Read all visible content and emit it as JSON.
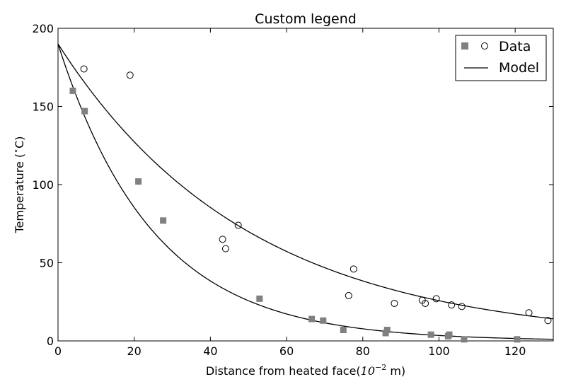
{
  "chart_data": {
    "type": "scatter",
    "title": "Custom legend",
    "xlabel": {
      "prefix": "Distance from heated face(",
      "unit_base": "10",
      "unit_exp": "−2",
      "suffix": " m)"
    },
    "ylabel": {
      "prefix": "Temperature (",
      "degree": "∘",
      "suffix": "C)"
    },
    "xlim": [
      0,
      130
    ],
    "ylim": [
      0,
      200
    ],
    "x_ticks": [
      0,
      20,
      40,
      60,
      80,
      100,
      120
    ],
    "y_ticks": [
      0,
      50,
      100,
      150,
      200
    ],
    "x_tick_labels": [
      "0",
      "20",
      "40",
      "60",
      "80",
      "100",
      "120"
    ],
    "y_tick_labels": [
      "0",
      "50",
      "100",
      "150",
      "200"
    ],
    "grid": false,
    "legend_position": "top-right",
    "legend": [
      {
        "label": "Data",
        "marker": "square-and-circle"
      },
      {
        "label": "Model",
        "marker": "line"
      }
    ],
    "series": [
      {
        "marker": "square",
        "color": "#808080",
        "x": [
          3.9,
          7.0,
          21.1,
          27.6,
          52.9,
          66.6,
          69.6,
          74.9,
          86.0,
          86.4,
          97.9,
          102.4,
          102.7,
          106.6,
          120.5
        ],
        "y": [
          160,
          147,
          102,
          77,
          27,
          14,
          13,
          7,
          5,
          7,
          4,
          3,
          4,
          1,
          1
        ]
      },
      {
        "marker": "circle",
        "color": "#000000",
        "x": [
          6.8,
          18.9,
          43.2,
          44.0,
          47.3,
          76.3,
          77.6,
          88.3,
          95.6,
          96.4,
          99.3,
          103.3,
          106.0,
          123.6,
          128.6
        ],
        "y": [
          174,
          170,
          65,
          59,
          74,
          29,
          46,
          24,
          26,
          24,
          27,
          23,
          22,
          18,
          13
        ]
      },
      {
        "marker": "line",
        "color": "#000000",
        "function": "exp",
        "a": 190,
        "k": 0.02,
        "x_range": [
          0,
          130
        ]
      },
      {
        "marker": "line",
        "color": "#000000",
        "function": "exp",
        "a": 190,
        "k": 0.04,
        "x_range": [
          0,
          130
        ]
      }
    ]
  }
}
